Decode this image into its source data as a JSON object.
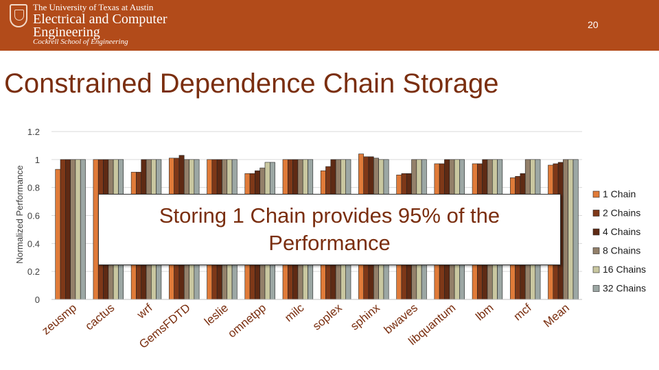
{
  "header": {
    "university": "The University of Texas at Austin",
    "dept_line1": "Electrical and Computer",
    "dept_line2": "Engineering",
    "school": "Cockrell School of Engineering",
    "page_number": "20"
  },
  "slide_title": "Constrained Dependence Chain Storage",
  "callout": "Storing 1 Chain provides 95% of the Performance",
  "colors": [
    "#e07b39",
    "#7e3818",
    "#5e2a14",
    "#93806a",
    "#c9c7a0",
    "#9ca7a4"
  ],
  "chart_data": {
    "type": "bar",
    "title": "",
    "xlabel": "",
    "ylabel": "Normalized Performance",
    "ylim": [
      0,
      1.2
    ],
    "yticks": [
      "0",
      "0.2",
      "0.4",
      "0.6",
      "0.8",
      "1",
      "1.2"
    ],
    "categories": [
      "zeusmp",
      "cactus",
      "wrf",
      "GemsFDTD",
      "leslie",
      "omnetpp",
      "milc",
      "soplex",
      "sphinx",
      "bwaves",
      "libquantum",
      "lbm",
      "mcf",
      "Mean"
    ],
    "series": [
      {
        "name": "1 Chain",
        "values": [
          0.93,
          1.0,
          0.91,
          1.01,
          1.0,
          0.9,
          1.0,
          0.92,
          1.04,
          0.89,
          0.97,
          0.97,
          0.87,
          0.96
        ]
      },
      {
        "name": "2 Chains",
        "values": [
          1.0,
          1.0,
          0.91,
          1.01,
          1.0,
          0.9,
          1.0,
          0.95,
          1.02,
          0.9,
          0.97,
          0.97,
          0.88,
          0.97
        ]
      },
      {
        "name": "4 Chains",
        "values": [
          1.0,
          1.0,
          1.0,
          1.03,
          1.0,
          0.92,
          1.0,
          1.0,
          1.02,
          0.9,
          1.0,
          1.0,
          0.9,
          0.98
        ]
      },
      {
        "name": "8 Chains",
        "values": [
          1.0,
          1.0,
          1.0,
          1.0,
          1.0,
          0.94,
          1.0,
          1.0,
          1.01,
          1.0,
          1.0,
          1.0,
          1.0,
          1.0
        ]
      },
      {
        "name": "16 Chains",
        "values": [
          1.0,
          1.0,
          1.0,
          1.0,
          1.0,
          0.98,
          1.0,
          1.0,
          1.0,
          1.0,
          1.0,
          1.0,
          1.0,
          1.0
        ]
      },
      {
        "name": "32 Chains",
        "values": [
          1.0,
          1.0,
          1.0,
          1.0,
          1.0,
          0.98,
          1.0,
          1.0,
          1.0,
          1.0,
          1.0,
          1.0,
          1.0,
          1.0
        ]
      }
    ],
    "legend_position": "right"
  }
}
